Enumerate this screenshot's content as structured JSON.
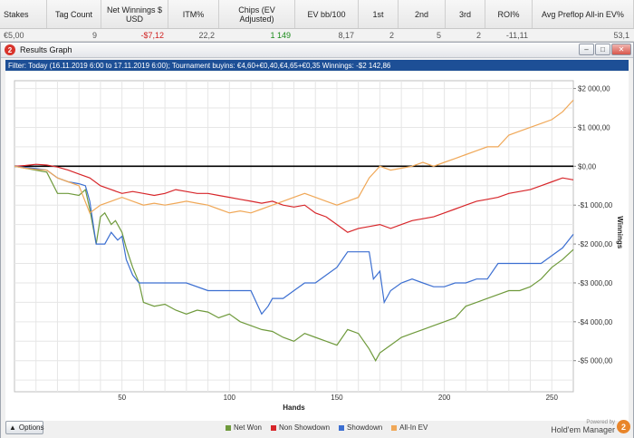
{
  "stats": {
    "headers": [
      "Stakes",
      "Tag Count",
      "Net Winnings $ USD",
      "ITM%",
      "Chips (EV Adjusted)",
      "EV bb/100",
      "1st",
      "2nd",
      "3rd",
      "ROI%",
      "Avg Preflop All-in EV%"
    ],
    "row": [
      "€5,00",
      "9",
      "-$7,12",
      "22,2",
      "1 149",
      "8,17",
      "2",
      "5",
      "2",
      "-11,11",
      "53,1"
    ]
  },
  "window": {
    "title": "Results Graph",
    "icon_text": "2",
    "buttons": [
      "minimize",
      "maximize",
      "close"
    ]
  },
  "filter": {
    "text": "Filter: Today (16.11.2019 6:00 to 17.11.2019 6:00); Tournament buyins: €4,60+€0,40,€4,65+€0,35 Winnings: -$2 142,86"
  },
  "bottom": {
    "options_label": "Options",
    "powered_small": "Powered by",
    "powered_big": "Hold'em Manager",
    "logo_text": "2"
  },
  "colors": {
    "net_won": "#6f9a3c",
    "non_showdown": "#d7262a",
    "showdown": "#3c6fd1",
    "all_in_ev": "#f0a858",
    "zero_line": "#000000",
    "filter_bg": "#1d4f96"
  },
  "chart_data": {
    "type": "line",
    "xlabel": "Hands",
    "ylabel": "Winnings",
    "xlim": [
      0,
      260
    ],
    "ylim": [
      -5800,
      2200
    ],
    "x_ticks": [
      50,
      100,
      150,
      200,
      250
    ],
    "y_ticks": [
      {
        "value": 2000,
        "label": "$2 000,00"
      },
      {
        "value": 1000,
        "label": "$1 000,00"
      },
      {
        "value": 0,
        "label": "$0,00"
      },
      {
        "value": -1000,
        "label": "-$1 000,00"
      },
      {
        "value": -2000,
        "label": "-$2 000,00"
      },
      {
        "value": -3000,
        "label": "-$3 000,00"
      },
      {
        "value": -4000,
        "label": "-$4 000,00"
      },
      {
        "value": -5000,
        "label": "-$5 000,00"
      }
    ],
    "grid": true,
    "legend_position": "bottom",
    "series": [
      {
        "name": "Net Won",
        "color": "#6f9a3c",
        "points": [
          [
            0,
            0
          ],
          [
            5,
            -50
          ],
          [
            10,
            -100
          ],
          [
            15,
            -150
          ],
          [
            20,
            -700
          ],
          [
            25,
            -700
          ],
          [
            30,
            -750
          ],
          [
            33,
            -600
          ],
          [
            35,
            -1100
          ],
          [
            38,
            -2000
          ],
          [
            40,
            -1300
          ],
          [
            42,
            -1200
          ],
          [
            45,
            -1500
          ],
          [
            47,
            -1400
          ],
          [
            50,
            -1700
          ],
          [
            52,
            -2100
          ],
          [
            55,
            -2600
          ],
          [
            58,
            -3000
          ],
          [
            60,
            -3500
          ],
          [
            65,
            -3600
          ],
          [
            70,
            -3550
          ],
          [
            75,
            -3700
          ],
          [
            80,
            -3800
          ],
          [
            85,
            -3700
          ],
          [
            90,
            -3750
          ],
          [
            95,
            -3900
          ],
          [
            100,
            -3800
          ],
          [
            105,
            -4000
          ],
          [
            110,
            -4100
          ],
          [
            115,
            -4200
          ],
          [
            120,
            -4250
          ],
          [
            125,
            -4400
          ],
          [
            130,
            -4500
          ],
          [
            135,
            -4300
          ],
          [
            140,
            -4400
          ],
          [
            145,
            -4500
          ],
          [
            150,
            -4600
          ],
          [
            155,
            -4200
          ],
          [
            160,
            -4300
          ],
          [
            165,
            -4700
          ],
          [
            168,
            -5000
          ],
          [
            170,
            -4800
          ],
          [
            175,
            -4600
          ],
          [
            180,
            -4400
          ],
          [
            185,
            -4300
          ],
          [
            190,
            -4200
          ],
          [
            195,
            -4100
          ],
          [
            200,
            -4000
          ],
          [
            205,
            -3900
          ],
          [
            210,
            -3600
          ],
          [
            215,
            -3500
          ],
          [
            220,
            -3400
          ],
          [
            225,
            -3300
          ],
          [
            230,
            -3200
          ],
          [
            235,
            -3200
          ],
          [
            240,
            -3100
          ],
          [
            245,
            -2900
          ],
          [
            250,
            -2600
          ],
          [
            255,
            -2400
          ],
          [
            260,
            -2142
          ]
        ]
      },
      {
        "name": "Non Showdown",
        "color": "#d7262a",
        "points": [
          [
            0,
            0
          ],
          [
            5,
            20
          ],
          [
            10,
            50
          ],
          [
            15,
            30
          ],
          [
            20,
            -20
          ],
          [
            25,
            -100
          ],
          [
            30,
            -200
          ],
          [
            35,
            -300
          ],
          [
            40,
            -500
          ],
          [
            45,
            -600
          ],
          [
            50,
            -700
          ],
          [
            55,
            -650
          ],
          [
            60,
            -700
          ],
          [
            65,
            -750
          ],
          [
            70,
            -700
          ],
          [
            75,
            -600
          ],
          [
            80,
            -650
          ],
          [
            85,
            -700
          ],
          [
            90,
            -700
          ],
          [
            95,
            -750
          ],
          [
            100,
            -800
          ],
          [
            105,
            -850
          ],
          [
            110,
            -900
          ],
          [
            115,
            -950
          ],
          [
            120,
            -900
          ],
          [
            125,
            -1000
          ],
          [
            130,
            -1050
          ],
          [
            135,
            -1000
          ],
          [
            140,
            -1200
          ],
          [
            145,
            -1300
          ],
          [
            150,
            -1500
          ],
          [
            155,
            -1700
          ],
          [
            160,
            -1600
          ],
          [
            165,
            -1550
          ],
          [
            170,
            -1500
          ],
          [
            175,
            -1600
          ],
          [
            180,
            -1500
          ],
          [
            185,
            -1400
          ],
          [
            190,
            -1350
          ],
          [
            195,
            -1300
          ],
          [
            200,
            -1200
          ],
          [
            205,
            -1100
          ],
          [
            210,
            -1000
          ],
          [
            215,
            -900
          ],
          [
            220,
            -850
          ],
          [
            225,
            -800
          ],
          [
            230,
            -700
          ],
          [
            235,
            -650
          ],
          [
            240,
            -600
          ],
          [
            245,
            -500
          ],
          [
            250,
            -400
          ],
          [
            255,
            -300
          ],
          [
            260,
            -350
          ]
        ]
      },
      {
        "name": "Showdown",
        "color": "#3c6fd1",
        "points": [
          [
            0,
            0
          ],
          [
            5,
            -30
          ],
          [
            10,
            -60
          ],
          [
            15,
            -100
          ],
          [
            20,
            -300
          ],
          [
            25,
            -400
          ],
          [
            30,
            -450
          ],
          [
            33,
            -500
          ],
          [
            35,
            -900
          ],
          [
            38,
            -2000
          ],
          [
            42,
            -2000
          ],
          [
            45,
            -1700
          ],
          [
            48,
            -1900
          ],
          [
            50,
            -1800
          ],
          [
            52,
            -2400
          ],
          [
            55,
            -2800
          ],
          [
            58,
            -3000
          ],
          [
            62,
            -3000
          ],
          [
            70,
            -3000
          ],
          [
            80,
            -3000
          ],
          [
            90,
            -3200
          ],
          [
            100,
            -3200
          ],
          [
            110,
            -3200
          ],
          [
            115,
            -3800
          ],
          [
            118,
            -3600
          ],
          [
            120,
            -3400
          ],
          [
            125,
            -3400
          ],
          [
            130,
            -3200
          ],
          [
            135,
            -3000
          ],
          [
            140,
            -3000
          ],
          [
            145,
            -2800
          ],
          [
            150,
            -2600
          ],
          [
            155,
            -2200
          ],
          [
            160,
            -2200
          ],
          [
            165,
            -2200
          ],
          [
            167,
            -2900
          ],
          [
            170,
            -2700
          ],
          [
            172,
            -3500
          ],
          [
            175,
            -3200
          ],
          [
            180,
            -3000
          ],
          [
            185,
            -2900
          ],
          [
            190,
            -3000
          ],
          [
            195,
            -3100
          ],
          [
            200,
            -3100
          ],
          [
            205,
            -3000
          ],
          [
            210,
            -3000
          ],
          [
            215,
            -2900
          ],
          [
            220,
            -2900
          ],
          [
            225,
            -2500
          ],
          [
            230,
            -2500
          ],
          [
            235,
            -2500
          ],
          [
            240,
            -2500
          ],
          [
            245,
            -2500
          ],
          [
            250,
            -2300
          ],
          [
            255,
            -2100
          ],
          [
            260,
            -1750
          ]
        ]
      },
      {
        "name": "All-In EV",
        "color": "#f0a858",
        "points": [
          [
            0,
            0
          ],
          [
            5,
            -50
          ],
          [
            10,
            -80
          ],
          [
            15,
            -100
          ],
          [
            20,
            -300
          ],
          [
            25,
            -400
          ],
          [
            30,
            -500
          ],
          [
            35,
            -1200
          ],
          [
            40,
            -1000
          ],
          [
            45,
            -900
          ],
          [
            50,
            -800
          ],
          [
            55,
            -900
          ],
          [
            60,
            -1000
          ],
          [
            65,
            -950
          ],
          [
            70,
            -1000
          ],
          [
            75,
            -950
          ],
          [
            80,
            -900
          ],
          [
            85,
            -950
          ],
          [
            90,
            -1000
          ],
          [
            95,
            -1100
          ],
          [
            100,
            -1200
          ],
          [
            105,
            -1150
          ],
          [
            110,
            -1200
          ],
          [
            115,
            -1100
          ],
          [
            120,
            -1000
          ],
          [
            125,
            -900
          ],
          [
            130,
            -800
          ],
          [
            135,
            -700
          ],
          [
            140,
            -800
          ],
          [
            145,
            -900
          ],
          [
            150,
            -1000
          ],
          [
            155,
            -900
          ],
          [
            160,
            -800
          ],
          [
            165,
            -300
          ],
          [
            170,
            0
          ],
          [
            175,
            -100
          ],
          [
            180,
            -50
          ],
          [
            185,
            0
          ],
          [
            190,
            100
          ],
          [
            195,
            0
          ],
          [
            200,
            100
          ],
          [
            205,
            200
          ],
          [
            210,
            300
          ],
          [
            215,
            400
          ],
          [
            220,
            500
          ],
          [
            225,
            500
          ],
          [
            230,
            800
          ],
          [
            235,
            900
          ],
          [
            240,
            1000
          ],
          [
            245,
            1100
          ],
          [
            250,
            1200
          ],
          [
            255,
            1400
          ],
          [
            260,
            1700
          ]
        ]
      }
    ]
  }
}
